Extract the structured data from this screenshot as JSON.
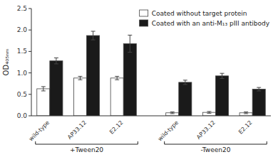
{
  "chart_data": {
    "type": "bar",
    "ylabel": "OD₄₀₅ₙₘ",
    "categories": [
      "wild-type",
      "AP33.12",
      "E2.12",
      "wild-type",
      "AP33.12",
      "E2.12"
    ],
    "category_groups": [
      "+Tween20",
      "+Tween20",
      "+Tween20",
      "-Tween20",
      "-Tween20",
      "-Tween20"
    ],
    "series": [
      {
        "name": "Coated without target protein",
        "color": "#ffffff",
        "values": [
          0.63,
          0.88,
          0.88,
          0.07,
          0.08,
          0.07
        ],
        "errors": [
          0.05,
          0.04,
          0.04,
          0.02,
          0.02,
          0.02
        ]
      },
      {
        "name": "Coated with an anti-M₁₃ pIII antibody",
        "color": "#1a1a1a",
        "values": [
          1.28,
          1.87,
          1.68,
          0.78,
          0.93,
          0.62
        ],
        "errors": [
          0.07,
          0.1,
          0.2,
          0.05,
          0.06,
          0.04
        ]
      }
    ],
    "ylim": [
      0,
      2.5
    ],
    "yticks": [
      {
        "value": 0.0,
        "label": "0.0"
      },
      0.5,
      {
        "value": 1.0,
        "label": "1.0"
      },
      1.5,
      {
        "value": 2.0,
        "label": "2.0"
      },
      2.5
    ],
    "legend": "upper right"
  }
}
